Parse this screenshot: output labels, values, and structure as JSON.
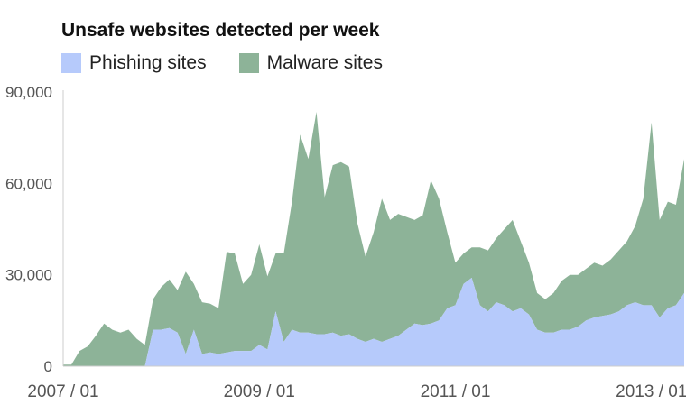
{
  "chart_data": {
    "type": "area",
    "stacked": true,
    "title": "Unsafe websites detected per week",
    "xlabel": "",
    "ylabel": "",
    "ylim": [
      0,
      90000
    ],
    "yticks": [
      0,
      30000,
      60000,
      90000
    ],
    "ytick_labels": [
      "0",
      "30,000",
      "60,000",
      "90,000"
    ],
    "xlim": [
      "2007-01",
      "2013-05"
    ],
    "xticks": [
      "2007-01",
      "2009-01",
      "2011-01",
      "2013-01"
    ],
    "xtick_labels": [
      "2007 / 01",
      "2009 / 01",
      "2011 / 01",
      "2013 / 01"
    ],
    "legend_position": "top-left",
    "grid": false,
    "colors": {
      "phishing": "#b6cafb",
      "malware": "#8db398",
      "axis": "#cccccc",
      "tick_text": "#555555"
    },
    "x": [
      "2007-01",
      "2007-02",
      "2007-03",
      "2007-04",
      "2007-05",
      "2007-06",
      "2007-07",
      "2007-08",
      "2007-09",
      "2007-10",
      "2007-11",
      "2007-12",
      "2008-01",
      "2008-02",
      "2008-03",
      "2008-04",
      "2008-05",
      "2008-06",
      "2008-07",
      "2008-08",
      "2008-09",
      "2008-10",
      "2008-11",
      "2008-12",
      "2009-01",
      "2009-02",
      "2009-03",
      "2009-04",
      "2009-05",
      "2009-06",
      "2009-07",
      "2009-08",
      "2009-09",
      "2009-10",
      "2009-11",
      "2009-12",
      "2010-01",
      "2010-02",
      "2010-03",
      "2010-04",
      "2010-05",
      "2010-06",
      "2010-07",
      "2010-08",
      "2010-09",
      "2010-10",
      "2010-11",
      "2010-12",
      "2011-01",
      "2011-02",
      "2011-03",
      "2011-04",
      "2011-05",
      "2011-06",
      "2011-07",
      "2011-08",
      "2011-09",
      "2011-10",
      "2011-11",
      "2011-12",
      "2012-01",
      "2012-02",
      "2012-03",
      "2012-04",
      "2012-05",
      "2012-06",
      "2012-07",
      "2012-08",
      "2012-09",
      "2012-10",
      "2012-11",
      "2012-12",
      "2013-01",
      "2013-02",
      "2013-03",
      "2013-04",
      "2013-05"
    ],
    "series": [
      {
        "name": "Phishing sites",
        "values": [
          0,
          0,
          0,
          0,
          0,
          0,
          0,
          0,
          0,
          0,
          0,
          12000,
          12000,
          12500,
          11000,
          4000,
          12000,
          4000,
          4500,
          4000,
          4500,
          5000,
          5000,
          5000,
          7000,
          5500,
          18000,
          8000,
          12000,
          11000,
          11000,
          10500,
          10500,
          11000,
          10000,
          10500,
          9000,
          8000,
          9000,
          8000,
          9000,
          10000,
          12000,
          14000,
          13500,
          14000,
          15000,
          19000,
          20000,
          27000,
          29000,
          20000,
          18000,
          21000,
          20000,
          18000,
          19000,
          17000,
          12000,
          11000,
          11000,
          12000,
          12000,
          13000,
          15000,
          16000,
          16500,
          17000,
          18000,
          20000,
          21000,
          20000,
          20000,
          16000,
          19000,
          20000,
          24000
        ]
      },
      {
        "name": "Malware sites",
        "values": [
          500,
          500,
          5000,
          6500,
          10000,
          14000,
          12000,
          11000,
          12000,
          9000,
          7000,
          10000,
          14000,
          16000,
          14000,
          27000,
          15000,
          17000,
          16000,
          15000,
          33000,
          32000,
          22000,
          25000,
          33000,
          24000,
          19000,
          29000,
          42000,
          65000,
          57000,
          73000,
          45000,
          55000,
          57000,
          55000,
          38000,
          28000,
          35000,
          47000,
          39000,
          40000,
          37000,
          34000,
          36000,
          47000,
          40000,
          25000,
          14000,
          10000,
          10000,
          19000,
          20000,
          21000,
          25000,
          30000,
          22000,
          17000,
          12000,
          11000,
          13000,
          16000,
          18000,
          17000,
          17000,
          18000,
          16500,
          18000,
          20000,
          21000,
          25000,
          35000,
          60000,
          32000,
          35000,
          33000,
          44000
        ]
      }
    ]
  }
}
